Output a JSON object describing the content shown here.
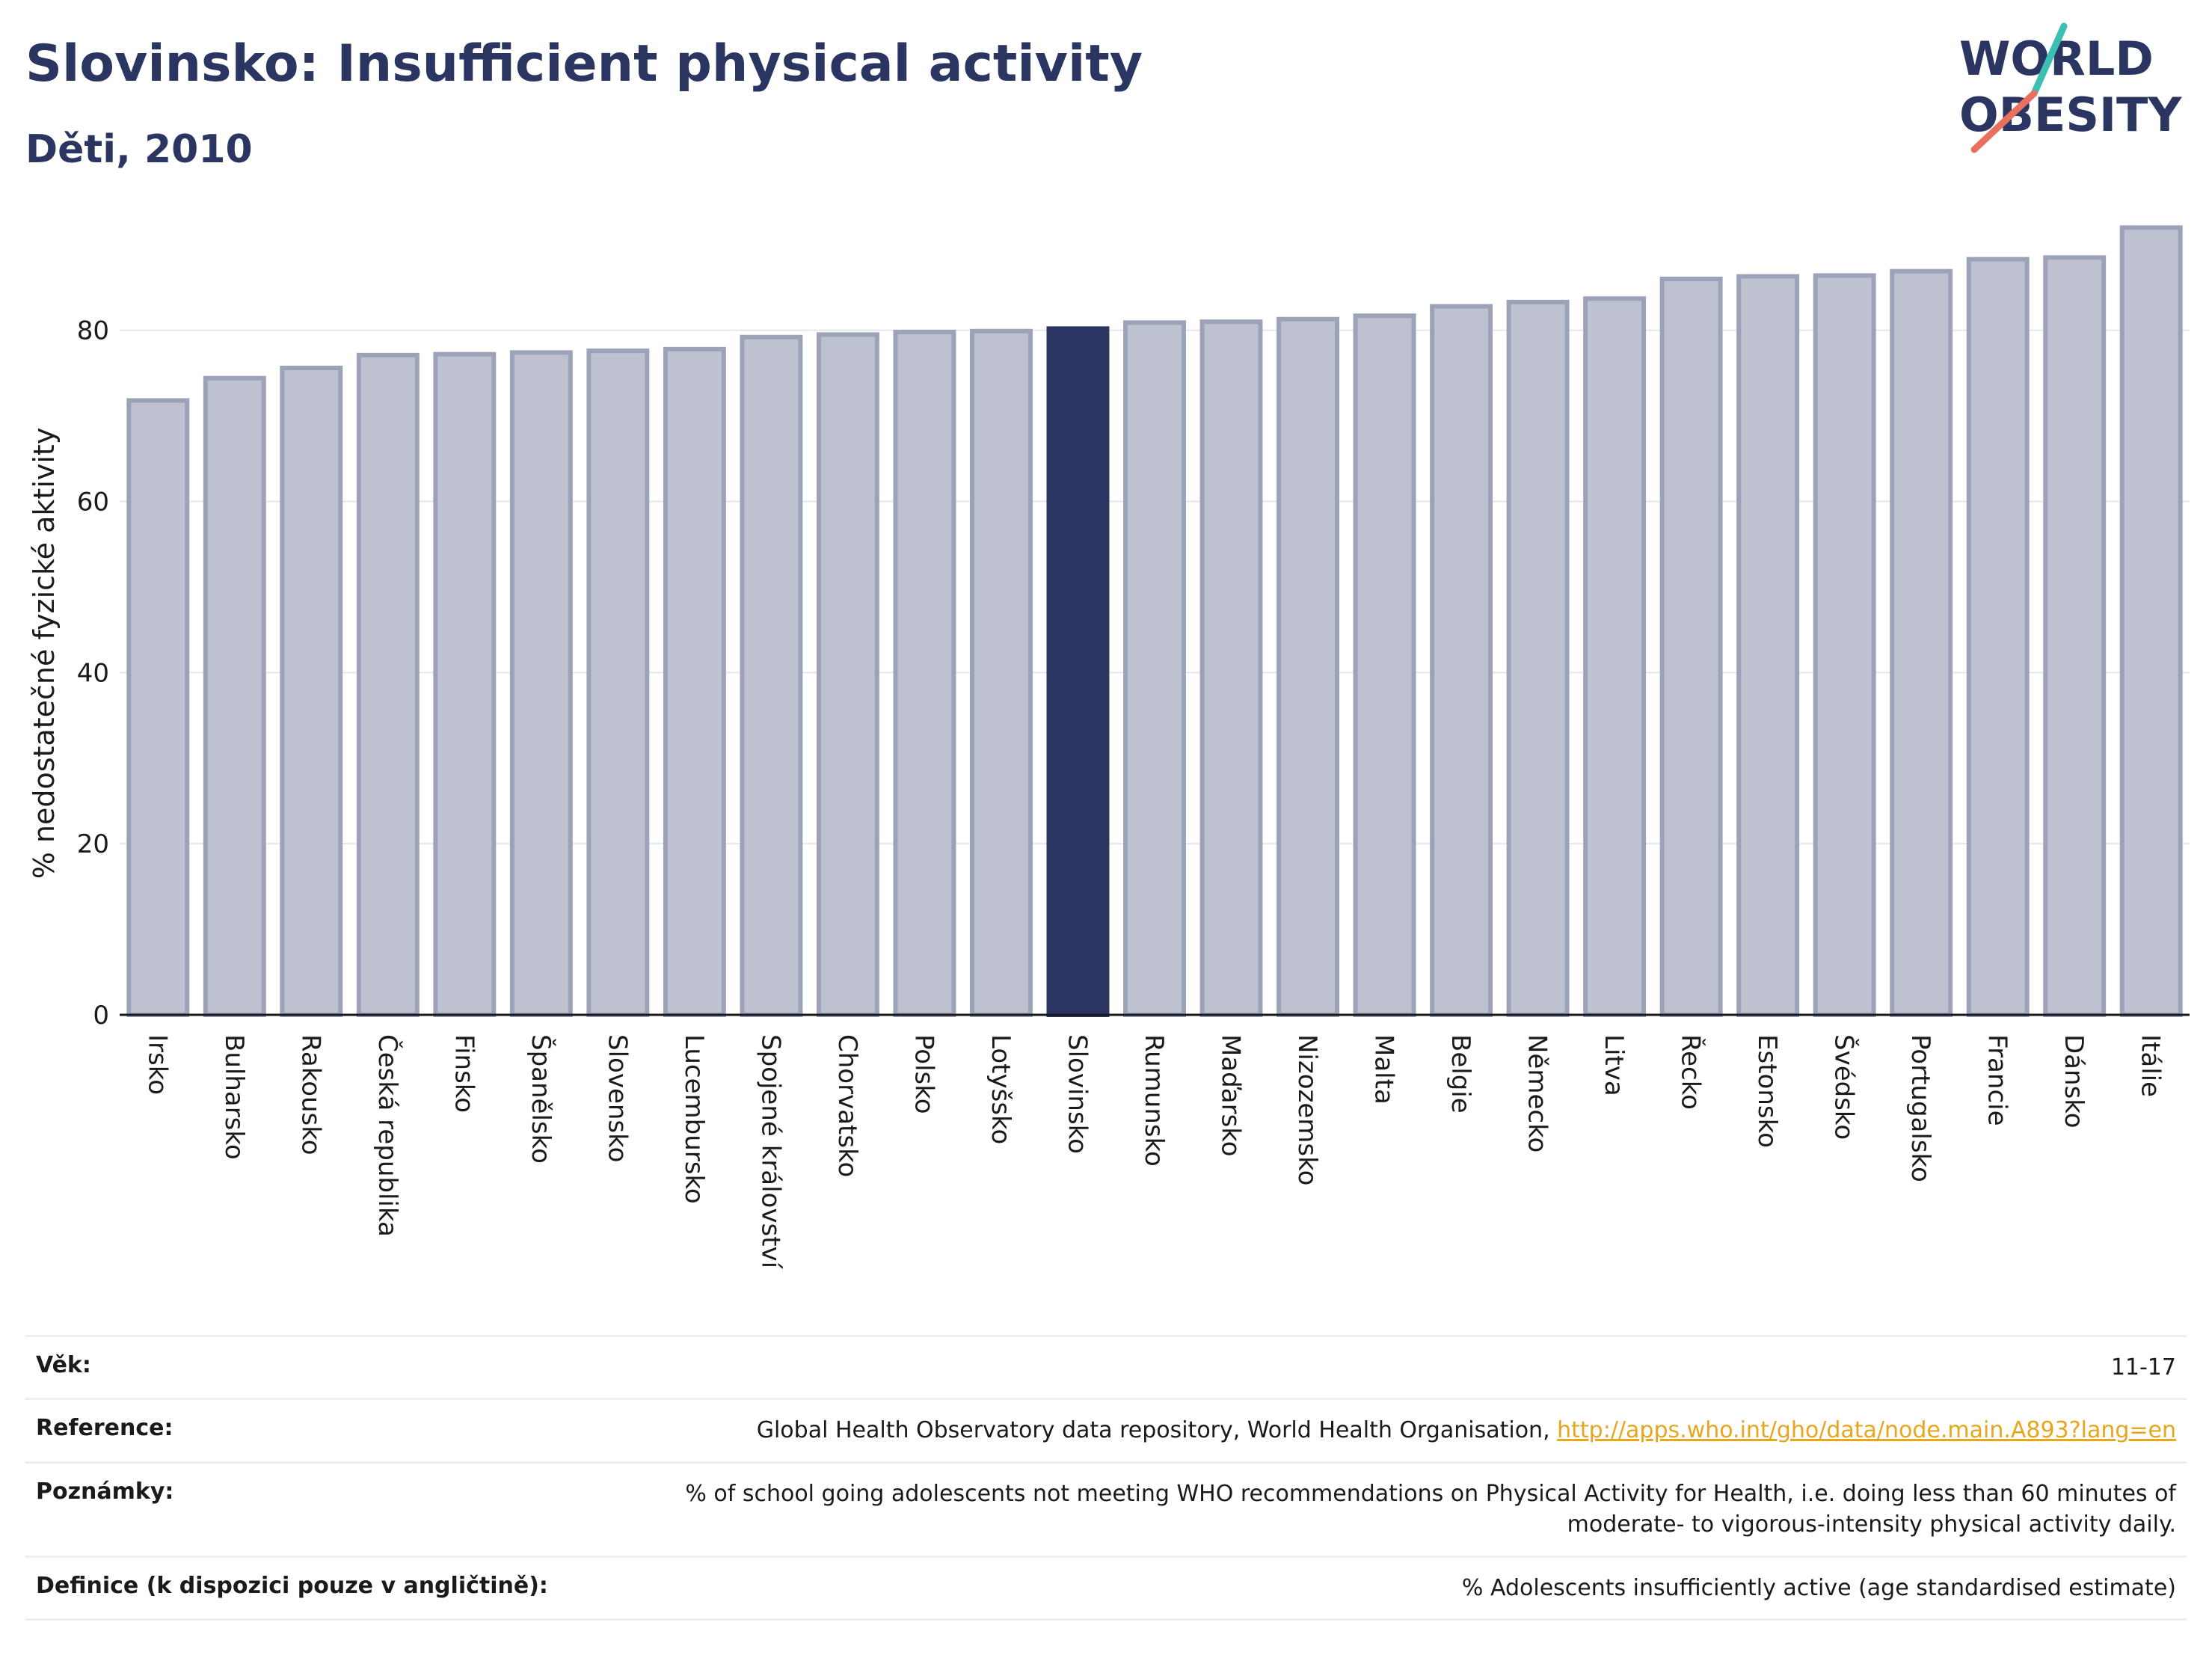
{
  "header": {
    "title": "Slovinsko: Insufficient physical activity",
    "subtitle": "Děti, 2010"
  },
  "logo": {
    "line1": "WORLD",
    "line2": "OBESITY",
    "colors": {
      "text": "#2b3561",
      "teal": "#3bbfb0",
      "coral": "#e9705f"
    }
  },
  "colors": {
    "bar_fill": "#bec1cf",
    "bar_stroke": "#9ca2b8",
    "highlight": "#2b3561",
    "grid": "#e4e6ee",
    "axis": "#1a1a1a"
  },
  "chart_data": {
    "type": "bar",
    "title": "Slovinsko: Insufficient physical activity",
    "subtitle": "Děti, 2010",
    "ylabel": "% nedostatečné fyzické aktivity",
    "xlabel": "",
    "ylim": [
      0,
      95
    ],
    "yticks": [
      0,
      20,
      40,
      60,
      80
    ],
    "grid": true,
    "highlight": "Slovinsko",
    "categories": [
      "Irsko",
      "Bulharsko",
      "Rakousko",
      "Česká republika",
      "Finsko",
      "Španělsko",
      "Slovensko",
      "Lucembursko",
      "Spojené království",
      "Chorvatsko",
      "Polsko",
      "Lotyšsko",
      "Slovinsko",
      "Rumunsko",
      "Maďarsko",
      "Nizozemsko",
      "Malta",
      "Belgie",
      "Německo",
      "Litva",
      "Řecko",
      "Estonsko",
      "Švédsko",
      "Portugalsko",
      "Francie",
      "Dánsko",
      "Itálie"
    ],
    "values": [
      71.8,
      74.4,
      75.6,
      77.1,
      77.2,
      77.4,
      77.6,
      77.8,
      79.2,
      79.5,
      79.8,
      79.9,
      80.2,
      80.9,
      81.0,
      81.3,
      81.7,
      82.8,
      83.3,
      83.7,
      86.0,
      86.3,
      86.4,
      86.9,
      88.3,
      88.5,
      92.0
    ]
  },
  "meta": {
    "rows": [
      {
        "label": "Věk:",
        "value": "11-17"
      },
      {
        "label": "Reference:",
        "value": "Global Health Observatory data repository, World Health Organisation, ",
        "link": "http://apps.who.int/gho/data/node.main.A893?lang=en"
      },
      {
        "label": "Poznámky:",
        "value": "% of school going adolescents not meeting WHO recommendations on Physical Activity for Health, i.e. doing less than 60 minutes of moderate- to vigorous-intensity physical activity daily."
      },
      {
        "label": "Definice (k dispozici pouze v angličtině):",
        "value": "% Adolescents insufficiently active (age standardised estimate)"
      }
    ]
  }
}
